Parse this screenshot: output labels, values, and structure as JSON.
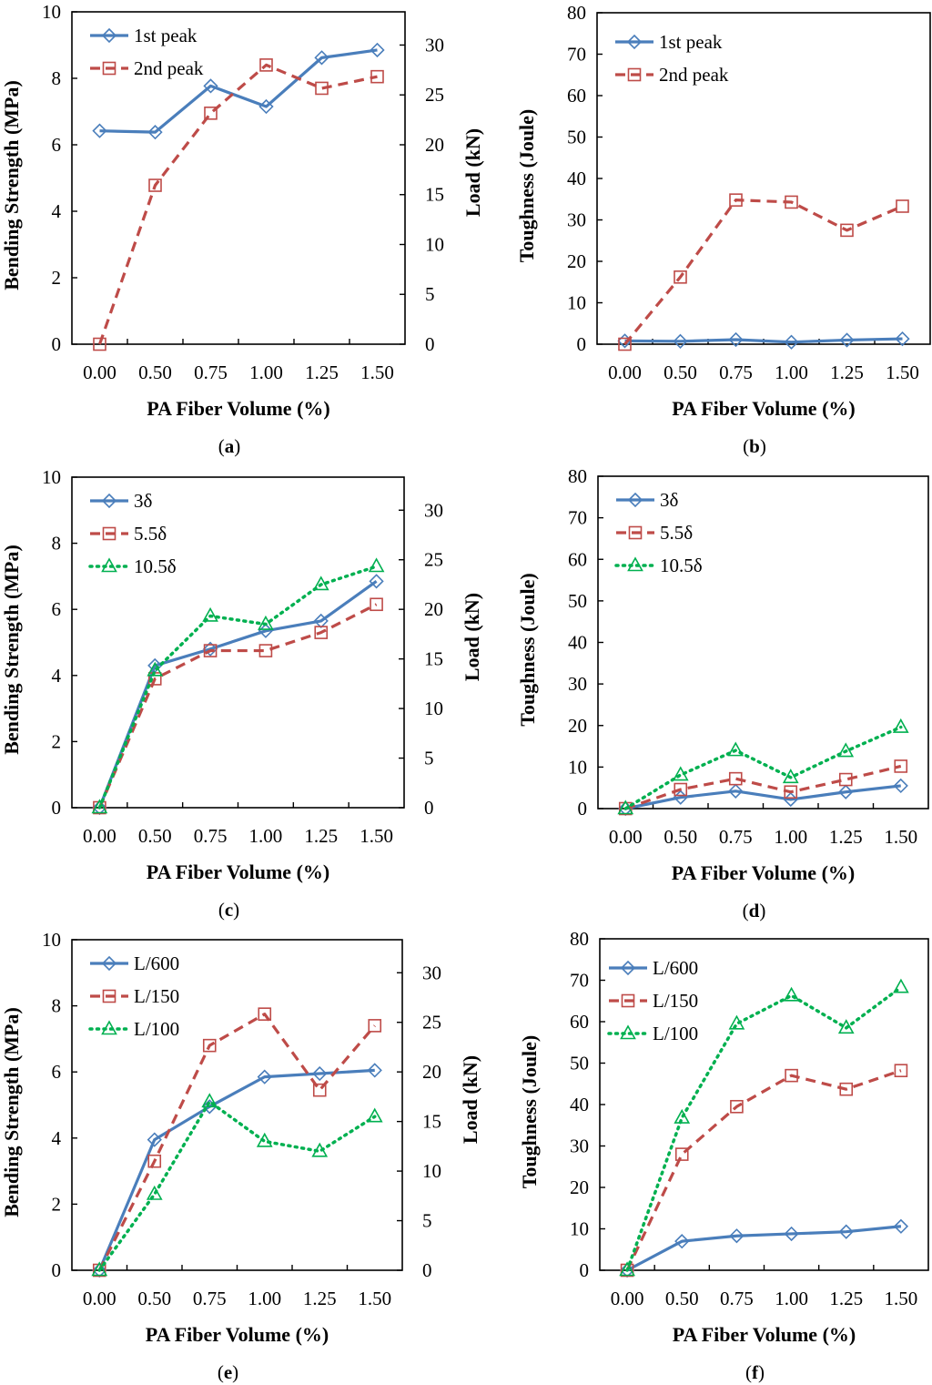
{
  "figure": {
    "colors": {
      "blue": "#4A7EBB",
      "red": "#BE4B48",
      "green": "#00B050",
      "axis": "#000000"
    }
  },
  "chart_data": [
    {
      "id": "a",
      "caption_letter": "a",
      "type": "line",
      "title": "",
      "xlabel": "PA Fiber Volume (%)",
      "ylabel": "Bending Strength (MPa)",
      "ylabel_right": "Load (kN)",
      "categories": [
        "0.00",
        "0.50",
        "0.75",
        "1.00",
        "1.25",
        "1.50"
      ],
      "ylim": [
        0,
        10
      ],
      "yticks": [
        "0",
        "2",
        "4",
        "6",
        "8",
        "10"
      ],
      "y2lim": [
        0,
        33.33
      ],
      "y2ticks": [
        "0",
        "5",
        "10",
        "15",
        "20",
        "25",
        "30"
      ],
      "grid": false,
      "legend_position": "top-left",
      "series": [
        {
          "name": "1st peak",
          "style": "solid",
          "marker": "diamond",
          "color": "blue",
          "values": [
            6.42,
            6.38,
            7.77,
            7.15,
            8.62,
            8.85
          ]
        },
        {
          "name": "2nd peak",
          "style": "dashed",
          "marker": "square",
          "color": "red",
          "values": [
            0,
            4.78,
            6.95,
            8.4,
            7.7,
            8.05
          ]
        }
      ]
    },
    {
      "id": "b",
      "caption_letter": "b",
      "type": "line",
      "title": "",
      "xlabel": "PA Fiber Volume (%)",
      "ylabel": "Toughness (Joule)",
      "categories": [
        "0.00",
        "0.50",
        "0.75",
        "1.00",
        "1.25",
        "1.50"
      ],
      "ylim": [
        0,
        80
      ],
      "yticks": [
        "0",
        "10",
        "20",
        "30",
        "40",
        "50",
        "60",
        "70",
        "80"
      ],
      "grid": false,
      "legend_position": "top-left",
      "series": [
        {
          "name": "1st peak",
          "style": "solid",
          "marker": "diamond",
          "color": "blue",
          "values": [
            0.8,
            0.7,
            1.1,
            0.5,
            1.0,
            1.3
          ]
        },
        {
          "name": "2nd peak",
          "style": "dashed",
          "marker": "square",
          "color": "red",
          "values": [
            0,
            16.2,
            34.8,
            34.3,
            27.5,
            33.3
          ]
        }
      ]
    },
    {
      "id": "c",
      "caption_letter": "c",
      "type": "line",
      "title": "",
      "xlabel": "PA Fiber Volume (%)",
      "ylabel": "Bending Strength (MPa)",
      "ylabel_right": "Load (kN)",
      "categories": [
        "0.00",
        "0.50",
        "0.75",
        "1.00",
        "1.25",
        "1.50"
      ],
      "ylim": [
        0,
        10
      ],
      "yticks": [
        "0",
        "2",
        "4",
        "6",
        "8",
        "10"
      ],
      "y2lim": [
        0,
        33.33
      ],
      "y2ticks": [
        "0",
        "5",
        "10",
        "15",
        "20",
        "25",
        "30"
      ],
      "grid": false,
      "legend_position": "top-left",
      "series": [
        {
          "name": "3δ",
          "style": "solid",
          "marker": "diamond",
          "color": "blue",
          "values": [
            0,
            4.3,
            4.8,
            5.35,
            5.65,
            6.85
          ]
        },
        {
          "name": "5.5δ",
          "style": "dashed",
          "marker": "square",
          "color": "red",
          "values": [
            0,
            3.9,
            4.75,
            4.75,
            5.3,
            6.15
          ]
        },
        {
          "name": "10.5δ",
          "style": "dotted",
          "marker": "triangle",
          "color": "green",
          "values": [
            0,
            4.15,
            5.8,
            5.55,
            6.75,
            7.3
          ]
        }
      ]
    },
    {
      "id": "d",
      "caption_letter": "d",
      "type": "line",
      "title": "",
      "xlabel": "PA Fiber Volume (%)",
      "ylabel": "Toughness (Joule)",
      "categories": [
        "0.00",
        "0.50",
        "0.75",
        "1.00",
        "1.25",
        "1.50"
      ],
      "ylim": [
        0,
        80
      ],
      "yticks": [
        "0",
        "10",
        "20",
        "30",
        "40",
        "50",
        "60",
        "70",
        "80"
      ],
      "grid": false,
      "legend_position": "top-left",
      "series": [
        {
          "name": "3δ",
          "style": "solid",
          "marker": "diamond",
          "color": "blue",
          "values": [
            0,
            2.7,
            4.2,
            2.2,
            4.0,
            5.5
          ]
        },
        {
          "name": "5.5δ",
          "style": "dashed",
          "marker": "square",
          "color": "red",
          "values": [
            0,
            4.6,
            7.2,
            4.0,
            7.0,
            10.2
          ]
        },
        {
          "name": "10.5δ",
          "style": "dotted",
          "marker": "triangle",
          "color": "green",
          "values": [
            0,
            8.1,
            14.0,
            7.5,
            13.8,
            19.6
          ]
        }
      ]
    },
    {
      "id": "e",
      "caption_letter": "e",
      "type": "line",
      "title": "",
      "xlabel": "PA Fiber Volume (%)",
      "ylabel": "Bending Strength (MPa)",
      "ylabel_right": "Load (kN)",
      "categories": [
        "0.00",
        "0.50",
        "0.75",
        "1.00",
        "1.25",
        "1.50"
      ],
      "ylim": [
        0,
        10
      ],
      "yticks": [
        "0",
        "2",
        "4",
        "6",
        "8",
        "10"
      ],
      "y2lim": [
        0,
        33.33
      ],
      "y2ticks": [
        "0",
        "5",
        "10",
        "15",
        "20",
        "25",
        "30"
      ],
      "grid": false,
      "legend_position": "top-left",
      "series": [
        {
          "name": "L/600",
          "style": "solid",
          "marker": "diamond",
          "color": "blue",
          "values": [
            0,
            3.95,
            4.95,
            5.85,
            5.95,
            6.05
          ]
        },
        {
          "name": "L/150",
          "style": "dashed",
          "marker": "square",
          "color": "red",
          "values": [
            0,
            3.3,
            6.8,
            7.75,
            5.45,
            7.4
          ]
        },
        {
          "name": "L/100",
          "style": "dotted",
          "marker": "triangle",
          "color": "green",
          "values": [
            0,
            2.3,
            5.1,
            3.9,
            3.6,
            4.65
          ]
        }
      ]
    },
    {
      "id": "f",
      "caption_letter": "f",
      "type": "line",
      "title": "",
      "xlabel": "PA Fiber Volume (%)",
      "ylabel": "Toughness (Joule)",
      "categories": [
        "0.00",
        "0.50",
        "0.75",
        "1.00",
        "1.25",
        "1.50"
      ],
      "ylim": [
        0,
        80
      ],
      "yticks": [
        "0",
        "10",
        "20",
        "30",
        "40",
        "50",
        "60",
        "70",
        "80"
      ],
      "grid": false,
      "legend_position": "top-left",
      "series": [
        {
          "name": "L/600",
          "style": "solid",
          "marker": "diamond",
          "color": "blue",
          "values": [
            0,
            7.0,
            8.3,
            8.8,
            9.3,
            10.6
          ]
        },
        {
          "name": "L/150",
          "style": "dashed",
          "marker": "square",
          "color": "red",
          "values": [
            0,
            28.0,
            39.5,
            47.0,
            43.7,
            48.2
          ]
        },
        {
          "name": "L/100",
          "style": "dotted",
          "marker": "triangle",
          "color": "green",
          "values": [
            0,
            36.8,
            59.5,
            66.3,
            58.5,
            68.3
          ]
        }
      ]
    }
  ]
}
